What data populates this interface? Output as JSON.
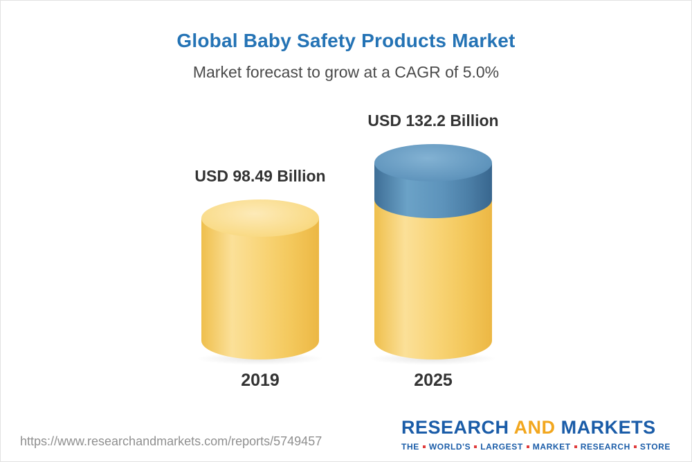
{
  "header": {
    "title": "Global Baby Safety Products Market",
    "subtitle": "Market forecast to grow at a CAGR of 5.0%",
    "title_color": "#2473b5"
  },
  "chart_data": {
    "type": "bar",
    "title": "Global Baby Safety Products Market",
    "subtitle": "Market forecast to grow at a CAGR of 5.0%",
    "categories": [
      "2019",
      "2025"
    ],
    "values": [
      98.49,
      132.2
    ],
    "value_labels": [
      "USD 98.49 Billion",
      "USD 132.2 Billion"
    ],
    "unit": "USD Billion",
    "cagr_percent": 5.0,
    "ylim": [
      0,
      140
    ],
    "grid": false,
    "legend": "none",
    "bar_style": "3d-cylinder",
    "colors": {
      "base_segment": "#f6cd62",
      "growth_segment": "#5d93bb",
      "title": "#2473b5",
      "label_text": "#333333"
    },
    "notes": "2025 bar shows base value (yellow) equal to 2019 level plus growth segment (blue) up to 132.2"
  },
  "footer": {
    "url": "https://www.researchandmarkets.com/reports/5749457",
    "logo": {
      "research": "RESEARCH",
      "and": "AND",
      "markets": "MARKETS",
      "tagline": "THE WORLD'S LARGEST MARKET RESEARCH STORE",
      "brand_blue": "#1a5ca8",
      "brand_yellow": "#f2a71f",
      "brand_red": "#e03c3c"
    }
  }
}
